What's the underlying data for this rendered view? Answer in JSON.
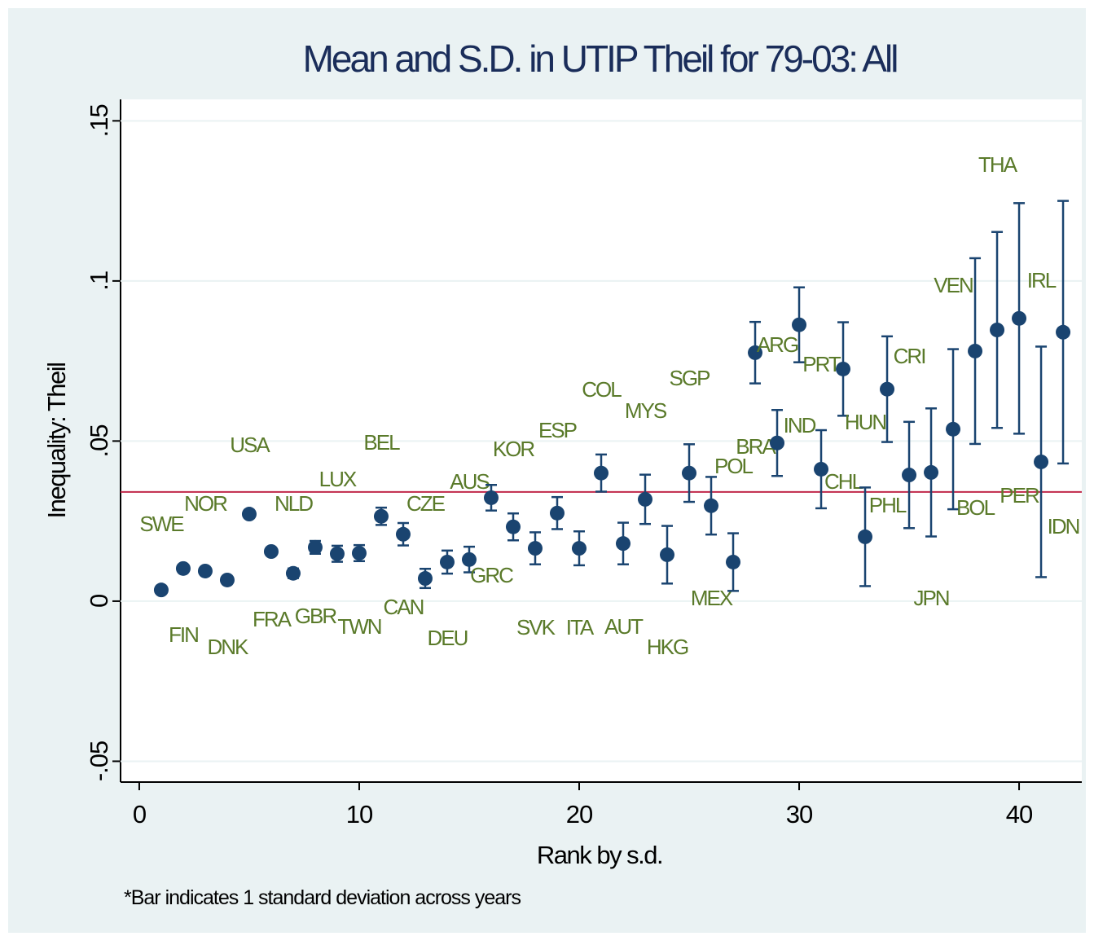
{
  "chart_data": {
    "type": "errorbar_scatter",
    "title": "Mean and S.D. in UTIP Theil for 79-03: All",
    "xlabel": "Rank by s.d.",
    "ylabel": "Inequality: Theil",
    "note": "*Bar indicates 1 standard deviation across years",
    "x": [
      1,
      2,
      3,
      4,
      5,
      6,
      7,
      8,
      9,
      10,
      11,
      12,
      13,
      14,
      15,
      16,
      17,
      18,
      19,
      20,
      21,
      22,
      23,
      24,
      25,
      26,
      27,
      28,
      29,
      30,
      31,
      32,
      33,
      34,
      35,
      36,
      37,
      38,
      39,
      40,
      41,
      42
    ],
    "values": [
      0.0035,
      0.0102,
      0.0094,
      0.0066,
      0.0272,
      0.0155,
      0.0087,
      0.0168,
      0.0148,
      0.015,
      0.0265,
      0.0209,
      0.0071,
      0.0122,
      0.013,
      0.0323,
      0.0232,
      0.0165,
      0.0275,
      0.0165,
      0.04,
      0.018,
      0.0318,
      0.0145,
      0.04,
      0.0298,
      0.0122,
      0.0776,
      0.0494,
      0.0863,
      0.0412,
      0.0725,
      0.0201,
      0.0662,
      0.0394,
      0.0402,
      0.0537,
      0.0781,
      0.0847,
      0.0883,
      0.0435,
      0.084
    ],
    "errors": [
      0.001,
      0.001,
      0.001,
      0.001,
      0.001,
      0.001,
      0.0015,
      0.002,
      0.0025,
      0.0025,
      0.0027,
      0.0035,
      0.003,
      0.0036,
      0.004,
      0.004,
      0.0042,
      0.005,
      0.005,
      0.0053,
      0.0058,
      0.0065,
      0.0077,
      0.009,
      0.009,
      0.009,
      0.009,
      0.0096,
      0.0103,
      0.0117,
      0.0122,
      0.0146,
      0.0154,
      0.0165,
      0.0166,
      0.02,
      0.025,
      0.029,
      0.0306,
      0.036,
      0.036,
      0.041
    ],
    "labels": [
      "SWE",
      "FIN",
      "NOR",
      "DNK",
      "USA",
      "FRA",
      "NLD",
      "GBR",
      "LUX",
      "TWN",
      "BEL",
      "CAN",
      "CZE",
      "DEU",
      "AUS",
      "GRC",
      "KOR",
      "SVK",
      "ESP",
      "ITA",
      "COL",
      "AUT",
      "MYS",
      "HKG",
      "SGP",
      "MEX",
      "POL",
      "BRA",
      "ARG",
      "IND",
      "PRT",
      "CHL",
      "HUN",
      "PHL",
      "CRI",
      "JPN",
      "VEN",
      "BOL",
      "THA",
      "PER",
      "IRL",
      "IDN"
    ],
    "hline": 0.0341,
    "color": "#1a4470",
    "label_color": "#5a7a2a",
    "hline_color": "#c0284a",
    "xlim": [
      -0.85,
      42.85
    ],
    "ylim": [
      -0.0565,
      0.1567
    ],
    "xticks": [
      0,
      10,
      20,
      30,
      40
    ],
    "yticks": [
      {
        "value": -0.05,
        "label": "-.05"
      },
      0,
      {
        "value": 0.05,
        "label": ".05"
      },
      {
        "value": 0.1,
        "label": ".1"
      },
      {
        "value": 0.15,
        "label": ".15"
      }
    ],
    "grid": true
  }
}
